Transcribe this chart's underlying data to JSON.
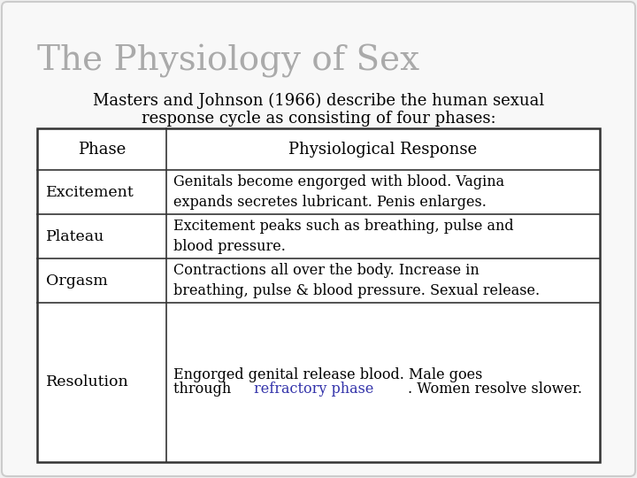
{
  "title": "The Physiology of Sex",
  "title_color": "#aaaaaa",
  "subtitle_line1": "Masters and Johnson (1966) describe the human sexual",
  "subtitle_line2": "response cycle as consisting of four phases:",
  "subtitle_color": "#000000",
  "background_color": "#f0f0f0",
  "table_bg": "#ffffff",
  "border_color": "#333333",
  "col1_header": "Phase",
  "col2_header": "Physiological Response",
  "rows": [
    {
      "phase": "Excitement",
      "response": "Genitals become engorged with blood. Vagina\nexpands secretes lubricant. Penis enlarges.",
      "highlight_text": "",
      "highlight_color": ""
    },
    {
      "phase": "Plateau",
      "response": "Excitement peaks such as breathing, pulse and\nblood pressure.",
      "highlight_text": "",
      "highlight_color": ""
    },
    {
      "phase": "Orgasm",
      "response": "Contractions all over the body. Increase in\nbreathing, pulse & blood pressure. Sexual release.",
      "highlight_text": "",
      "highlight_color": ""
    },
    {
      "phase": "Resolution",
      "response_line1": "Engorged genital release blood. Male goes",
      "response_before": "through ",
      "response_highlight": "refractory phase",
      "response_after": ". Women resolve slower.",
      "highlight_color": "#3333aa"
    }
  ],
  "font_family": "DejaVu Serif",
  "title_fontsize": 28,
  "subtitle_fontsize": 13,
  "header_fontsize": 13,
  "cell_fontsize": 11.5
}
